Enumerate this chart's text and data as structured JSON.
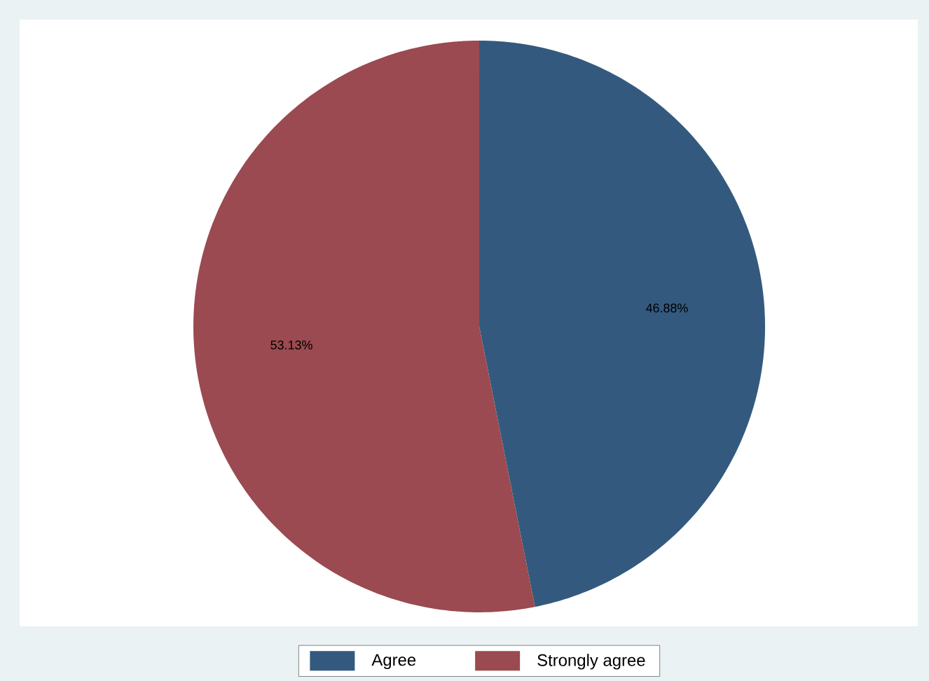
{
  "chart_data": {
    "type": "pie",
    "categories": [
      "Agree",
      "Strongly agree"
    ],
    "values": [
      46.88,
      53.13
    ],
    "colors": [
      "#335a7e",
      "#9a4a50"
    ],
    "value_labels": [
      "46.88%",
      "53.13%"
    ],
    "legend": "bottom"
  }
}
